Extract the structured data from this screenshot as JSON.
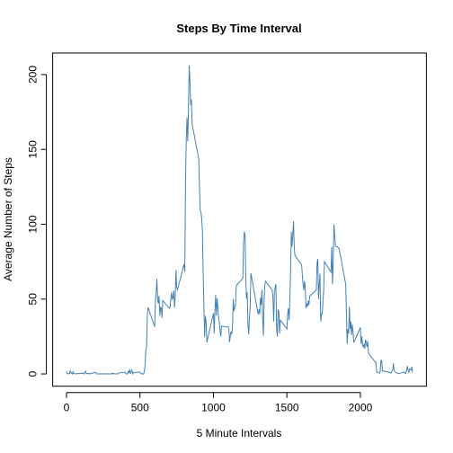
{
  "chart_data": {
    "type": "line",
    "title": "Steps By Time Interval",
    "xlabel": "5 Minute Intervals",
    "ylabel": "Average Number of Steps",
    "color": "#4682b4",
    "xlim": [
      -94.2,
      2449.2
    ],
    "ylim": [
      -8.2,
      214.4
    ],
    "xticks": [
      0,
      500,
      1000,
      1500,
      2000
    ],
    "yticks": [
      0,
      50,
      100,
      150,
      200
    ],
    "x": [
      0,
      5,
      10,
      15,
      20,
      25,
      30,
      35,
      40,
      45,
      50,
      55,
      100,
      105,
      110,
      115,
      120,
      125,
      130,
      135,
      140,
      145,
      150,
      155,
      200,
      205,
      210,
      215,
      220,
      225,
      230,
      235,
      240,
      245,
      250,
      255,
      300,
      305,
      310,
      315,
      320,
      325,
      330,
      335,
      340,
      345,
      350,
      355,
      400,
      405,
      410,
      415,
      420,
      425,
      430,
      435,
      440,
      445,
      450,
      455,
      500,
      505,
      510,
      515,
      520,
      525,
      530,
      535,
      540,
      545,
      550,
      555,
      600,
      605,
      610,
      615,
      620,
      625,
      630,
      635,
      640,
      645,
      650,
      655,
      700,
      705,
      710,
      715,
      720,
      725,
      730,
      735,
      740,
      745,
      750,
      755,
      800,
      805,
      810,
      815,
      820,
      825,
      830,
      835,
      840,
      845,
      850,
      855,
      900,
      905,
      910,
      915,
      920,
      925,
      930,
      935,
      940,
      945,
      950,
      955,
      1000,
      1005,
      1010,
      1015,
      1020,
      1025,
      1030,
      1035,
      1040,
      1045,
      1050,
      1055,
      1100,
      1105,
      1110,
      1115,
      1120,
      1125,
      1130,
      1135,
      1140,
      1145,
      1150,
      1155,
      1200,
      1205,
      1210,
      1215,
      1220,
      1225,
      1230,
      1235,
      1240,
      1245,
      1250,
      1255,
      1300,
      1305,
      1310,
      1315,
      1320,
      1325,
      1330,
      1335,
      1340,
      1345,
      1350,
      1355,
      1400,
      1405,
      1410,
      1415,
      1420,
      1425,
      1430,
      1435,
      1440,
      1445,
      1450,
      1455,
      1500,
      1505,
      1510,
      1515,
      1520,
      1525,
      1530,
      1535,
      1540,
      1545,
      1550,
      1555,
      1600,
      1605,
      1610,
      1615,
      1620,
      1625,
      1630,
      1635,
      1640,
      1645,
      1650,
      1655,
      1700,
      1705,
      1710,
      1715,
      1720,
      1725,
      1730,
      1735,
      1740,
      1745,
      1750,
      1755,
      1800,
      1805,
      1810,
      1815,
      1820,
      1825,
      1830,
      1835,
      1840,
      1845,
      1850,
      1855,
      1900,
      1905,
      1910,
      1915,
      1920,
      1925,
      1930,
      1935,
      1940,
      1945,
      1950,
      1955,
      2000,
      2005,
      2010,
      2015,
      2020,
      2025,
      2030,
      2035,
      2040,
      2045,
      2050,
      2055,
      2100,
      2105,
      2110,
      2115,
      2120,
      2125,
      2130,
      2135,
      2140,
      2145,
      2150,
      2155,
      2200,
      2205,
      2210,
      2215,
      2220,
      2225,
      2230,
      2235,
      2240,
      2245,
      2250,
      2255,
      2300,
      2305,
      2310,
      2315,
      2320,
      2325,
      2330,
      2335,
      2340,
      2345,
      2350,
      2355
    ],
    "values": [
      1.7,
      0.3,
      0.1,
      0.2,
      0.1,
      2.1,
      0.5,
      0.9,
      0,
      1.5,
      0.3,
      0.1,
      0.3,
      0.7,
      0.2,
      0.3,
      0,
      1.1,
      1.8,
      0.2,
      0.2,
      0.4,
      0.3,
      0,
      1.1,
      0,
      0,
      0,
      0,
      0,
      0,
      0.2,
      0,
      0,
      0,
      0.1,
      0,
      0,
      0.5,
      0,
      0.6,
      0,
      0,
      0,
      0.1,
      0,
      0,
      0.6,
      1.2,
      0,
      0,
      0,
      1.6,
      0.9,
      3.0,
      0.1,
      1.5,
      2.6,
      0,
      0.8,
      1.3,
      0.4,
      0,
      0.1,
      0,
      0,
      2.1,
      6.1,
      16.0,
      18.3,
      39.5,
      44.5,
      31.5,
      49.3,
      53.8,
      63.5,
      50.0,
      47.1,
      52.2,
      38.9,
      44.5,
      44.2,
      37.4,
      49.0,
      43.8,
      44.4,
      50.5,
      54.5,
      49.9,
      51.0,
      55.7,
      44.3,
      52.3,
      69.5,
      57.8,
      56.2,
      73.4,
      68.2,
      129.4,
      157.5,
      171.2,
      155.4,
      177.3,
      206.2,
      196.0,
      179.6,
      183.4,
      167.0,
      143.5,
      124.0,
      109.1,
      108.1,
      103.7,
      95.9,
      66.2,
      45.2,
      24.8,
      38.8,
      35.0,
      21.1,
      40.6,
      27.0,
      42.4,
      52.7,
      38.9,
      50.5,
      44.3,
      37.4,
      34.7,
      28.3,
      25.1,
      31.9,
      31.4,
      29.7,
      21.3,
      25.5,
      28.4,
      26.5,
      33.4,
      50.0,
      42.0,
      44.6,
      46.0,
      59.0,
      63.9,
      87.5,
      94.8,
      92.8,
      63.4,
      50.2,
      54.5,
      32.4,
      26.5,
      37.7,
      45.1,
      67.3,
      42.3,
      39.9,
      43.3,
      40.0,
      50.9,
      46.2,
      56.2,
      36.8,
      25.5,
      50.0,
      60.0,
      62.0,
      56.0,
      51.0,
      35.0,
      55.0,
      58.0,
      60.0,
      30.0,
      25.0,
      43.0,
      42.0,
      27.0,
      36.0,
      30.0,
      40.0,
      44.0,
      36.0,
      50.0,
      70.0,
      95.0,
      85.0,
      93.0,
      102.0,
      84.0,
      79.0,
      73.0,
      66.0,
      60.0,
      56.0,
      62.0,
      57.0,
      44.0,
      47.0,
      45.0,
      49.0,
      46.0,
      52.0,
      56.0,
      74.0,
      77.0,
      50.0,
      60.0,
      67.0,
      35.0,
      40.0,
      40.0,
      48.0,
      55.0,
      75.0,
      68.0,
      85.0,
      60.0,
      75.0,
      100.0,
      93.0,
      86.0,
      85.0,
      85.0,
      85.0,
      84.0,
      84.0,
      60.0,
      41.0,
      20.0,
      30.0,
      27.0,
      45.0,
      30.0,
      35.0,
      26.0,
      33.0,
      28.0,
      21.0,
      31.0,
      20.0,
      25.0,
      19.0,
      18.0,
      20.0,
      17.0,
      23.0,
      21.0,
      18.0,
      22.0,
      14.0,
      8.0,
      8.0,
      2.0,
      1.0,
      1.0,
      0.6,
      0.5,
      1.8,
      9.0,
      9.0,
      2.0,
      2.0,
      1.0,
      0.7,
      0.6,
      2.0,
      3.0,
      7.0,
      2.0,
      1.5,
      1.0,
      0.8,
      0.5,
      0.2,
      1.2,
      0.4,
      0.4,
      2.7,
      5.2,
      2.0,
      1.0,
      3.3,
      2.8,
      2.5,
      4.7,
      1.1
    ]
  }
}
